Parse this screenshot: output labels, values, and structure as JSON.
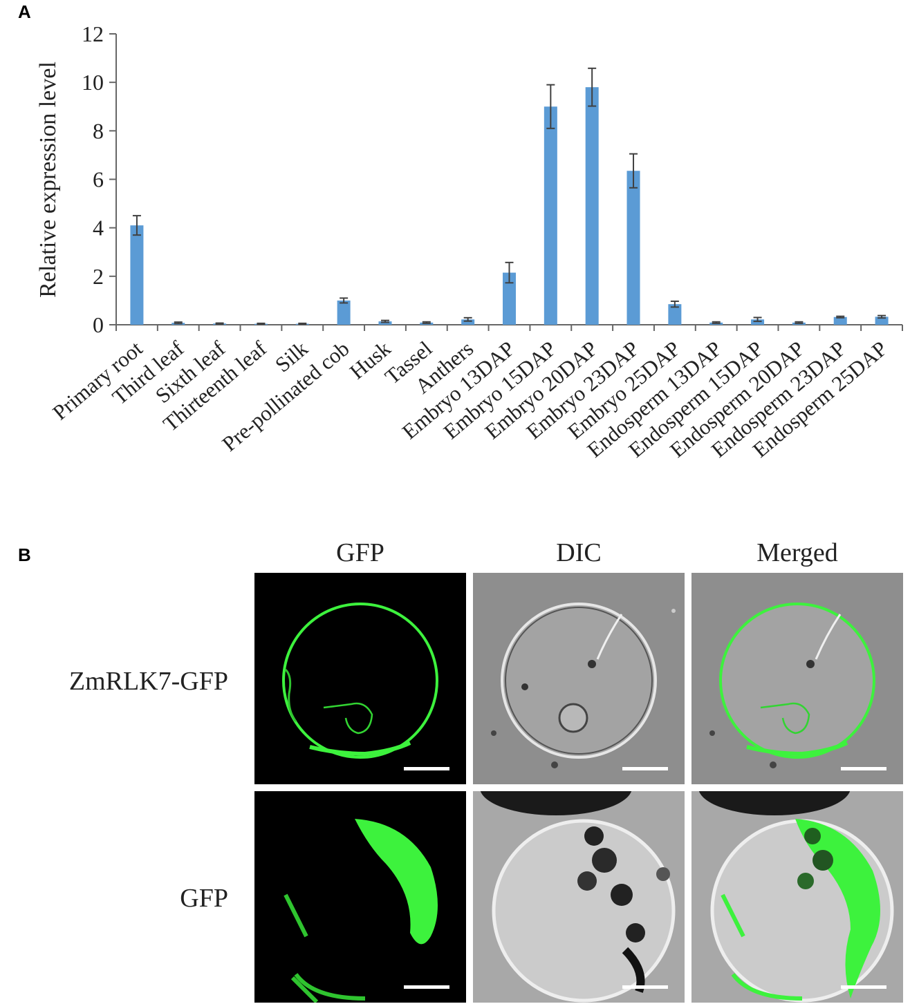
{
  "panel_a": {
    "letter": "A"
  },
  "panel_b": {
    "letter": "B",
    "columns": [
      "GFP",
      "DIC",
      "Merged"
    ],
    "rows": [
      "ZmRLK7-GFP",
      "GFP"
    ]
  },
  "colors": {
    "bar": "#5b9bd5",
    "gfp": "#39e639",
    "error_bar": "#404040"
  },
  "chart_data": {
    "type": "bar",
    "ylabel": "Relative expression level",
    "ylim": [
      0,
      12
    ],
    "yticks": [
      "0",
      "2",
      "4",
      "6",
      "8",
      "10",
      "12"
    ],
    "categories": [
      "Primary root",
      "Third leaf",
      "Sixth leaf",
      "Thirteenth leaf",
      "Silk",
      "Pre-pollinated cob",
      "Husk",
      "Tassel",
      "Anthers",
      "Embryo 13DAP",
      "Embryo 15DAP",
      "Embryo 20DAP",
      "Embryo 23DAP",
      "Embryo 25DAP",
      "Endosperm 13DAP",
      "Endosperm 15DAP",
      "Endosperm 20DAP",
      "Endosperm 23DAP",
      "Endosperm 25DAP"
    ],
    "values": [
      4.1,
      0.08,
      0.05,
      0.04,
      0.04,
      1.0,
      0.14,
      0.09,
      0.22,
      2.15,
      9.0,
      9.8,
      6.35,
      0.85,
      0.09,
      0.22,
      0.09,
      0.32,
      0.33
    ],
    "errors": [
      0.4,
      0.03,
      0.02,
      0.02,
      0.02,
      0.1,
      0.04,
      0.03,
      0.07,
      0.42,
      0.9,
      0.78,
      0.7,
      0.12,
      0.03,
      0.08,
      0.03,
      0.03,
      0.05
    ]
  }
}
